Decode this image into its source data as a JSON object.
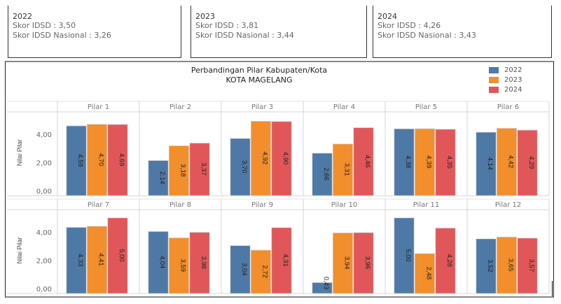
{
  "summary_cards": [
    {
      "year": "2022",
      "skor_idsd": "Skor IDSD : 3,50",
      "skor_nasional": "Skor IDSD Nasional : 3,26"
    },
    {
      "year": "2023",
      "skor_idsd": "Skor IDSD : 3,81",
      "skor_nasional": "Skor IDSD Nasional : 3,44"
    },
    {
      "year": "2024",
      "skor_idsd": "Skor IDSD : 4,26",
      "skor_nasional": "Skor IDSD Nasional : 3,43"
    }
  ],
  "colors": {
    "2022": "#4e79a7",
    "2023": "#f28e2b",
    "2024": "#e15759"
  },
  "chart_data": {
    "type": "bar",
    "title": "Perbandingan Pilar Kabupaten/Kota",
    "subtitle": "KOTA MAGELANG",
    "ylabel": "Nilai Pilar",
    "xlabel": "",
    "ylim": [
      0,
      5
    ],
    "yticks": [
      "0,00",
      "2,00",
      "4,00"
    ],
    "ytick_values": [
      0,
      2,
      4
    ],
    "grid": false,
    "legend_position": "top-right",
    "legend": [
      "2022",
      "2023",
      "2024"
    ],
    "categories": [
      "Pilar 1",
      "Pilar 2",
      "Pilar 3",
      "Pilar 4",
      "Pilar 5",
      "Pilar 6",
      "Pilar 7",
      "Pilar 8",
      "Pilar 9",
      "Pilar 10",
      "Pilar 11",
      "Pilar 12"
    ],
    "series": [
      {
        "name": "2022",
        "values": [
          4.59,
          2.14,
          3.7,
          2.66,
          4.38,
          4.14,
          4.33,
          4.04,
          3.04,
          0.43,
          5.0,
          3.52
        ],
        "labels": [
          "4,59",
          "2,14",
          "3,70",
          "2,66",
          "4,38",
          "4,14",
          "4,33",
          "4,04",
          "3,04",
          "0,43",
          "5,00",
          "3,52"
        ]
      },
      {
        "name": "2023",
        "values": [
          4.7,
          3.18,
          4.92,
          3.31,
          4.39,
          4.42,
          4.41,
          3.59,
          2.72,
          3.94,
          2.48,
          3.65
        ],
        "labels": [
          "4,70",
          "3,18",
          "4,92",
          "3,31",
          "4,39",
          "4,42",
          "4,41",
          "3,59",
          "2,72",
          "3,94",
          "2,48",
          "3,65"
        ]
      },
      {
        "name": "2024",
        "values": [
          4.69,
          3.37,
          4.9,
          4.46,
          4.35,
          4.29,
          5.0,
          3.98,
          4.31,
          3.96,
          4.28,
          3.57
        ],
        "labels": [
          "4,69",
          "3,37",
          "4,90",
          "4,46",
          "4,35",
          "4,29",
          "5,00",
          "3,98",
          "4,31",
          "3,96",
          "4,28",
          "3,57"
        ]
      }
    ]
  }
}
